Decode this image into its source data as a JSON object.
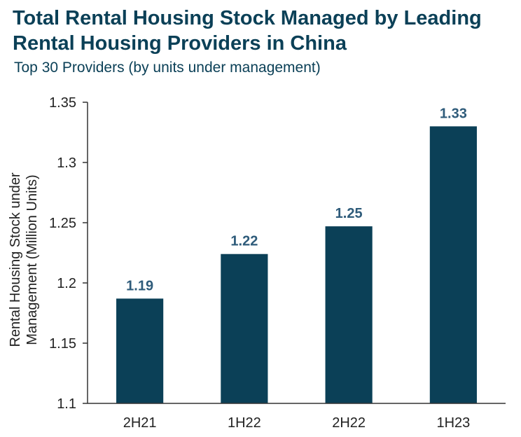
{
  "chart_data": {
    "type": "bar",
    "title": "Total Rental Housing Stock Managed by Leading Rental Housing Providers in China",
    "subtitle": "Top 30 Providers (by units under management)",
    "xlabel": "",
    "ylabel": "Rental Housing Stock under Management (Million Units)",
    "categories": [
      "2H21",
      "1H22",
      "2H22",
      "1H23"
    ],
    "values": [
      1.187,
      1.224,
      1.247,
      1.33
    ],
    "data_labels": [
      "1.19",
      "1.22",
      "1.25",
      "1.33"
    ],
    "ylim": [
      1.1,
      1.35
    ],
    "yticks": [
      1.1,
      1.15,
      1.2,
      1.25,
      1.3,
      1.35
    ],
    "ytick_labels": [
      "1.1",
      "1.15",
      "1.2",
      "1.25",
      "1.3",
      "1.35"
    ],
    "grid": false,
    "legend": "none",
    "bar_color": "#0b4057",
    "label_color": "#2e5b7a"
  }
}
